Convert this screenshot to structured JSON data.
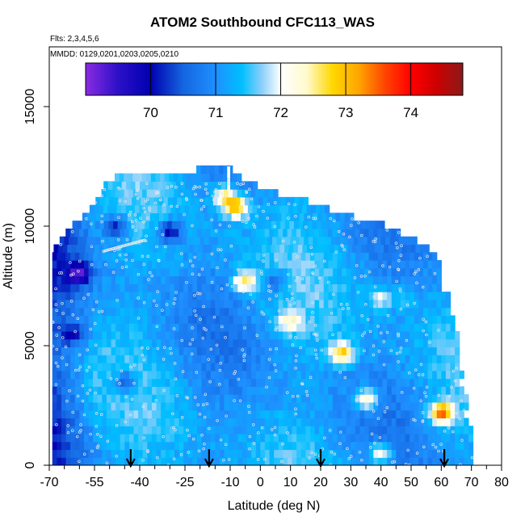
{
  "chart_data": {
    "type": "heatmap",
    "title": "ATOM2 Southbound CFC113_WAS",
    "flights_note": "Flts: 2,3,4,5,6",
    "dates_note": "MMDD: 0129,0201,0203,0205,0210",
    "xlabel": "Latitude (deg N)",
    "ylabel": "Altitude (m)",
    "xlim": [
      -70,
      80
    ],
    "ylim": [
      0,
      17500
    ],
    "x_ticks": [
      -70,
      -55,
      -40,
      -25,
      -10,
      0,
      10,
      20,
      30,
      40,
      50,
      60,
      70,
      80
    ],
    "x_tick_labels": [
      "-70",
      "-55",
      "-40",
      "-25",
      "-10",
      "0",
      "10",
      "20",
      "30",
      "40",
      "50",
      "60",
      "70",
      "80"
    ],
    "x_minor_ticks": [
      -65,
      -60,
      -50,
      -45,
      -35,
      -30,
      -20,
      -15,
      -5,
      5,
      15,
      25,
      35,
      45,
      55,
      65,
      75
    ],
    "y_ticks": [
      0,
      5000,
      10000,
      15000
    ],
    "y_tick_labels": [
      "0",
      "5000",
      "10000",
      "15000"
    ],
    "colorbar": {
      "range": [
        69,
        74.8
      ],
      "ticks": [
        70,
        71,
        72,
        73,
        74
      ],
      "tick_labels": [
        "70",
        "71",
        "72",
        "73",
        "74"
      ],
      "stops": [
        {
          "v": 69.0,
          "c": "#8a2be2"
        },
        {
          "v": 69.5,
          "c": "#2c10c8"
        },
        {
          "v": 70.0,
          "c": "#0000b0"
        },
        {
          "v": 70.5,
          "c": "#1565e0"
        },
        {
          "v": 71.0,
          "c": "#1e90ff"
        },
        {
          "v": 71.4,
          "c": "#00bfff"
        },
        {
          "v": 71.7,
          "c": "#87cefa"
        },
        {
          "v": 72.0,
          "c": "#ffffff"
        },
        {
          "v": 72.4,
          "c": "#fffacd"
        },
        {
          "v": 72.8,
          "c": "#ffd700"
        },
        {
          "v": 73.2,
          "c": "#ffa500"
        },
        {
          "v": 73.6,
          "c": "#ff4500"
        },
        {
          "v": 74.0,
          "c": "#ff0000"
        },
        {
          "v": 74.4,
          "c": "#cd0000"
        },
        {
          "v": 74.8,
          "c": "#8b1a1a"
        }
      ]
    },
    "envelope": [
      {
        "alt": 0,
        "lat_min": -69,
        "lat_max": 71
      },
      {
        "alt": 2000,
        "lat_min": -69,
        "lat_max": 68
      },
      {
        "alt": 4000,
        "lat_min": -69,
        "lat_max": 66
      },
      {
        "alt": 6000,
        "lat_min": -69,
        "lat_max": 64
      },
      {
        "alt": 8000,
        "lat_min": -69,
        "lat_max": 59
      },
      {
        "alt": 9000,
        "lat_min": -69,
        "lat_max": 57
      },
      {
        "alt": 10000,
        "lat_min": -63,
        "lat_max": 42
      },
      {
        "alt": 10500,
        "lat_min": -58,
        "lat_max": 27
      },
      {
        "alt": 11500,
        "lat_min": -52,
        "lat_max": 3
      },
      {
        "alt": 12000,
        "lat_min": -52,
        "lat_max": -7
      },
      {
        "alt": 12500,
        "lat_min": -11,
        "lat_max": -10
      }
    ],
    "field_anomalies": [
      {
        "lat": -60,
        "alt": 8000,
        "value": 69.8
      },
      {
        "lat": -48,
        "alt": 10000,
        "value": 70.2
      },
      {
        "lat": -30,
        "alt": 9800,
        "value": 70.0
      },
      {
        "lat": -45,
        "alt": 3500,
        "value": 70.3
      },
      {
        "lat": -62,
        "alt": 5500,
        "value": 70.4
      },
      {
        "lat": -8,
        "alt": 10800,
        "value": 73.2
      },
      {
        "lat": -12,
        "alt": 11300,
        "value": 72.6
      },
      {
        "lat": 0,
        "alt": 9400,
        "value": 71.2
      },
      {
        "lat": -5,
        "alt": 7700,
        "value": 72.8
      },
      {
        "lat": 5,
        "alt": 7700,
        "value": 70.5
      },
      {
        "lat": 10,
        "alt": 6000,
        "value": 72.4
      },
      {
        "lat": 27,
        "alt": 4700,
        "value": 73.0
      },
      {
        "lat": 35,
        "alt": 2800,
        "value": 72.9
      },
      {
        "lat": 60,
        "alt": 2200,
        "value": 73.6
      },
      {
        "lat": 40,
        "alt": 7000,
        "value": 72.2
      },
      {
        "lat": 48,
        "alt": 7000,
        "value": 71.6
      },
      {
        "lat": 22,
        "alt": 2000,
        "value": 71.3
      },
      {
        "lat": 40,
        "alt": 500,
        "value": 72.5
      }
    ],
    "arrow_latitudes": [
      -43,
      -17,
      20,
      61
    ]
  }
}
